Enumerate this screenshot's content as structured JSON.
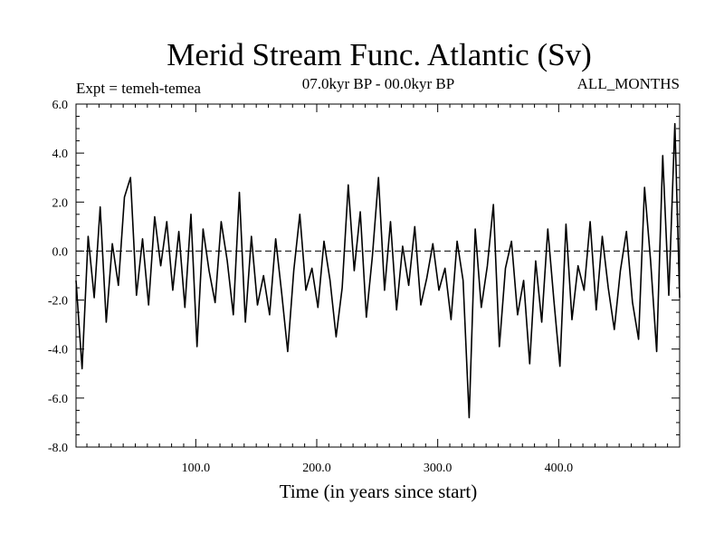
{
  "chart_data": {
    "type": "line",
    "title": "Merid Stream Func. Atlantic (Sv)",
    "subtitle_left": "Expt = temeh-temea",
    "subtitle_center": "07.0kyr BP - 00.0kyr BP",
    "subtitle_right": "ALL_MONTHS",
    "xlabel": "Time (in years since start)",
    "ylabel": "",
    "xlim": [
      1,
      500
    ],
    "ylim": [
      -8,
      6
    ],
    "xticks": [
      100,
      200,
      300,
      400
    ],
    "xtick_labels": [
      "100.0",
      "200.0",
      "300.0",
      "400.0"
    ],
    "yticks": [
      6,
      4,
      2,
      0,
      -2,
      -4,
      -6,
      -8
    ],
    "ytick_labels": [
      "6.0",
      "4.0",
      "2.0",
      "0.0",
      "-2.0",
      "-4.0",
      "-6.0",
      "-8.0"
    ],
    "reference_line": 0,
    "series": [
      {
        "name": "Merid Stream Func. Atlantic",
        "x": [
          1,
          6,
          11,
          16,
          21,
          26,
          31,
          36,
          41,
          46,
          51,
          56,
          61,
          66,
          71,
          76,
          81,
          86,
          91,
          96,
          101,
          106,
          111,
          116,
          121,
          126,
          131,
          136,
          141,
          146,
          151,
          156,
          161,
          166,
          171,
          176,
          181,
          186,
          191,
          196,
          201,
          206,
          211,
          216,
          221,
          226,
          231,
          236,
          241,
          246,
          251,
          256,
          261,
          266,
          271,
          276,
          281,
          286,
          291,
          296,
          301,
          306,
          311,
          316,
          321,
          326,
          331,
          336,
          341,
          346,
          351,
          356,
          361,
          366,
          371,
          376,
          381,
          386,
          391,
          396,
          401,
          406,
          411,
          416,
          421,
          426,
          431,
          436,
          441,
          446,
          451,
          456,
          461,
          466,
          471,
          476,
          481,
          486,
          491,
          496,
          500
        ],
        "values": [
          -1.2,
          -4.8,
          0.6,
          -1.9,
          1.8,
          -2.9,
          0.3,
          -1.4,
          2.2,
          3.0,
          -1.8,
          0.5,
          -2.2,
          1.4,
          -0.6,
          1.2,
          -1.6,
          0.8,
          -2.3,
          1.5,
          -3.9,
          0.9,
          -0.8,
          -2.1,
          1.2,
          -0.4,
          -2.6,
          2.4,
          -2.9,
          0.6,
          -2.2,
          -1.0,
          -2.6,
          0.5,
          -1.7,
          -4.1,
          -0.8,
          1.5,
          -1.6,
          -0.7,
          -2.3,
          0.4,
          -1.2,
          -3.5,
          -1.5,
          2.7,
          -0.8,
          1.6,
          -2.7,
          -0.2,
          3.0,
          -1.6,
          1.2,
          -2.4,
          0.2,
          -1.4,
          1.0,
          -2.2,
          -1.1,
          0.3,
          -1.6,
          -0.7,
          -2.8,
          0.4,
          -1.2,
          -6.8,
          0.9,
          -2.3,
          -0.6,
          1.9,
          -3.9,
          -0.7,
          0.4,
          -2.6,
          -1.2,
          -4.6,
          -0.4,
          -2.9,
          0.9,
          -2.0,
          -4.7,
          1.1,
          -2.8,
          -0.6,
          -1.6,
          1.2,
          -2.4,
          0.6,
          -1.5,
          -3.2,
          -0.8,
          0.8,
          -2.1,
          -3.6,
          2.6,
          -0.4,
          -4.1,
          3.9,
          -1.8,
          5.2,
          -1.9
        ]
      }
    ]
  }
}
